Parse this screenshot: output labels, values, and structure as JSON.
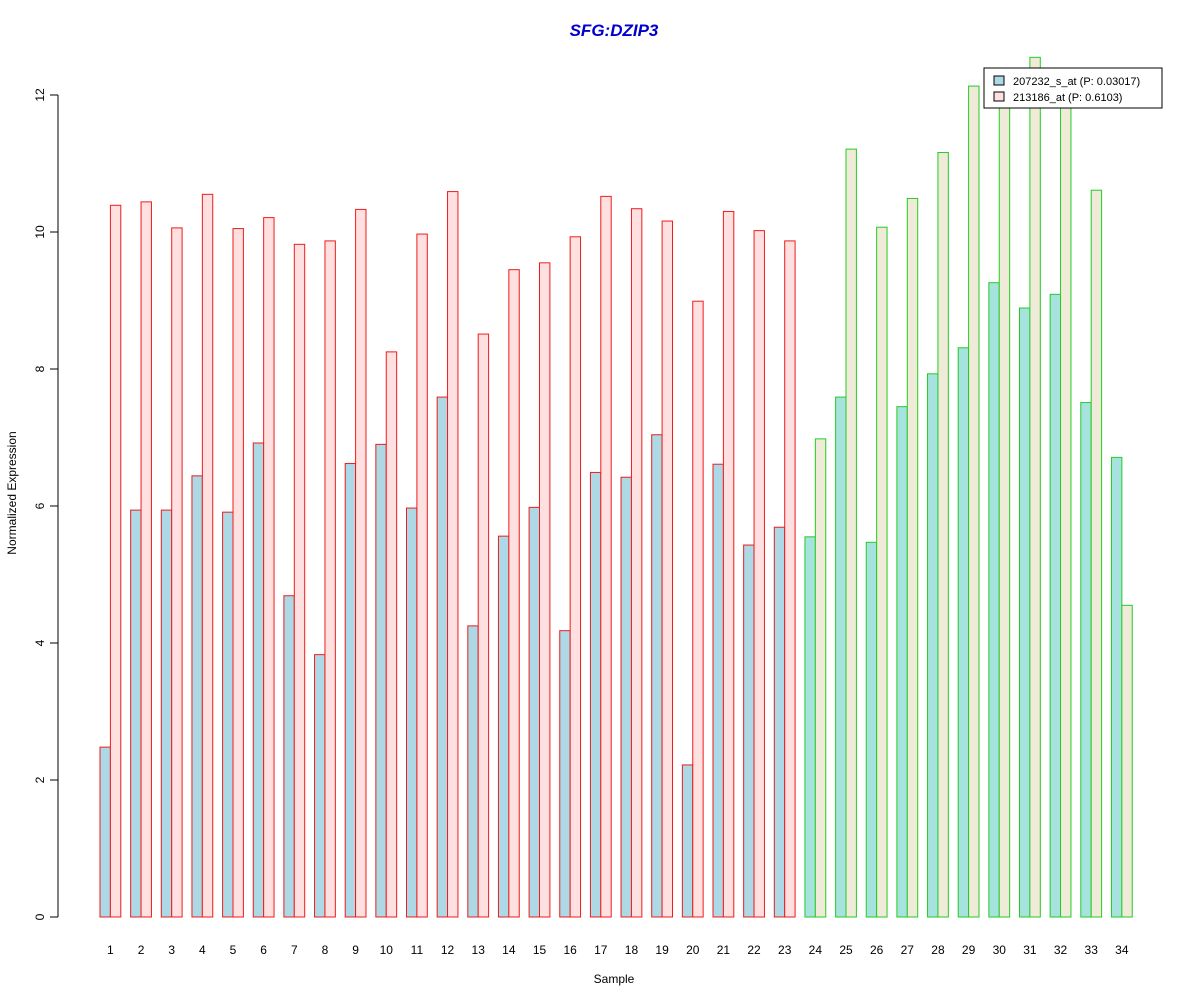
{
  "chart_data": {
    "type": "bar",
    "title": "SFG:DZIP3",
    "xlabel": "Sample",
    "ylabel": "Normalized Expression",
    "ylim": [
      0,
      12
    ],
    "yticks": [
      "0",
      "2",
      "4",
      "6",
      "8",
      "10",
      "12"
    ],
    "categories": [
      "1",
      "2",
      "3",
      "4",
      "5",
      "6",
      "7",
      "8",
      "9",
      "10",
      "11",
      "12",
      "13",
      "14",
      "15",
      "16",
      "17",
      "18",
      "19",
      "20",
      "21",
      "22",
      "23",
      "24",
      "25",
      "26",
      "27",
      "28",
      "29",
      "30",
      "31",
      "32",
      "33",
      "34"
    ],
    "groups": [
      "red",
      "red",
      "red",
      "red",
      "red",
      "red",
      "red",
      "red",
      "red",
      "red",
      "red",
      "red",
      "red",
      "red",
      "red",
      "red",
      "red",
      "red",
      "red",
      "red",
      "red",
      "red",
      "red",
      "green",
      "green",
      "green",
      "green",
      "green",
      "green",
      "green",
      "green",
      "green",
      "green",
      "green"
    ],
    "series": [
      {
        "name": "207232_s_at (P: 0.03017)",
        "values": [
          2.48,
          5.94,
          5.94,
          6.44,
          5.91,
          6.92,
          4.69,
          3.83,
          6.62,
          6.9,
          5.97,
          7.59,
          4.25,
          5.56,
          5.98,
          4.18,
          6.49,
          6.42,
          7.04,
          2.22,
          6.61,
          5.43,
          5.69,
          5.55,
          7.59,
          5.47,
          7.45,
          7.93,
          8.31,
          9.26,
          8.89,
          9.09,
          7.51,
          6.71
        ]
      },
      {
        "name": "213186_at (P: 0.6103)",
        "values": [
          10.39,
          10.44,
          10.06,
          10.55,
          10.05,
          10.21,
          9.82,
          9.87,
          10.33,
          8.25,
          9.97,
          10.59,
          8.51,
          9.45,
          9.55,
          9.93,
          10.52,
          10.34,
          10.16,
          8.99,
          10.3,
          10.02,
          9.87,
          6.98,
          11.21,
          10.07,
          10.49,
          11.16,
          12.13,
          12.02,
          12.55,
          12.02,
          10.61,
          4.55
        ]
      }
    ],
    "colors": {
      "title": "#0000cc",
      "red_border": "#ee1c1c",
      "green_border": "#22cc22",
      "series1_fill": "#add8e6",
      "series2_fill_red": "#ffe0e0",
      "series2_fill_green": "#f0ebd8",
      "series1_fill_green": "#a6e3de"
    },
    "legend_position": "top-right",
    "grid": false
  }
}
